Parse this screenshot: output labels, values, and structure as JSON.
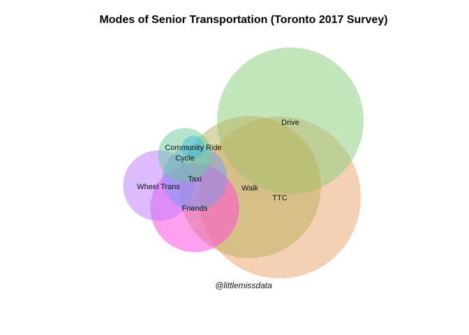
{
  "chart_data": {
    "type": "bubble-venn",
    "title": "Modes of Senior Transportation (Toronto 2017 Survey)",
    "caption": "@littlemissdata",
    "unit_note": "relative bubble size (area), estimated",
    "series": [
      {
        "name": "TTC",
        "value": 100,
        "color": "#e9a26a"
      },
      {
        "name": "Drive",
        "value": 82,
        "color": "#88cc77"
      },
      {
        "name": "Walk",
        "value": 77,
        "color": "#b8b05a"
      },
      {
        "name": "Friends",
        "value": 30,
        "color": "#ff44dd"
      },
      {
        "name": "Wheel Trans",
        "value": 19,
        "color": "#bb77ff"
      },
      {
        "name": "Taxi",
        "value": 16,
        "color": "#7799ee"
      },
      {
        "name": "Cycle",
        "value": 11,
        "color": "#66cc99"
      },
      {
        "name": "Community Ride",
        "value": 2,
        "color": "#44bbdd"
      }
    ]
  }
}
